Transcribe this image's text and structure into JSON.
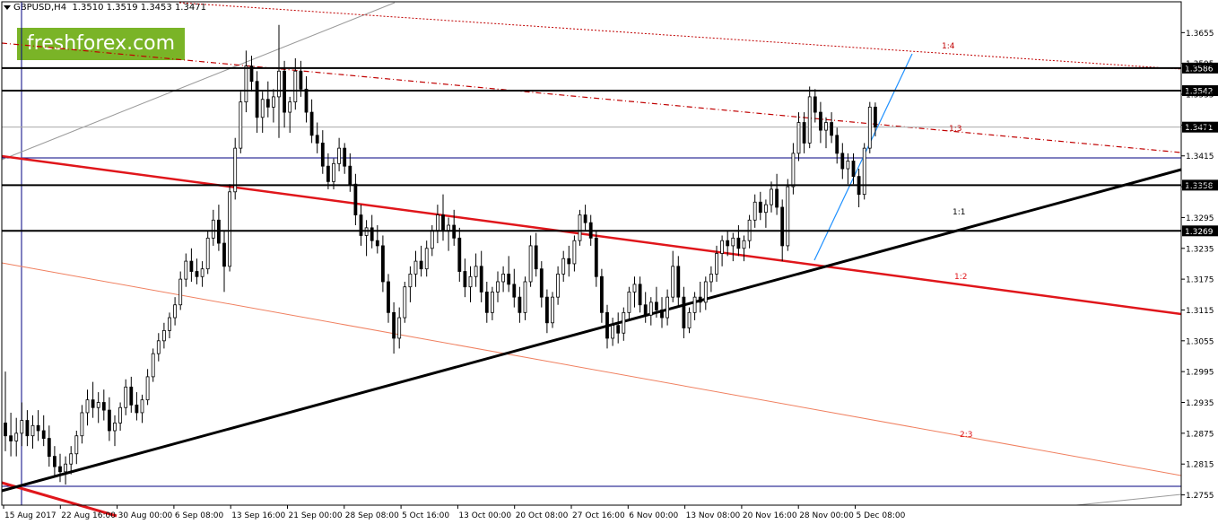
{
  "header": {
    "symbol": "GBPUSD,H4",
    "ohlc": "1.3510 1.3519 1.3453 1.3471"
  },
  "brand": {
    "text": "freshforex.com",
    "color": "#7ab427"
  },
  "colors": {
    "candles": "#000000",
    "support_resistance": "#000000",
    "trendline": "#000000",
    "channel_red": "#e0161b",
    "channel_light": "#f08060",
    "dotted_red": "#c00000",
    "blue_line": "#1e90ff",
    "price_line": "#a9a9a9",
    "vertical_marker": "#000080"
  },
  "chart_data": {
    "type": "candlestick",
    "title": "GBPUSD,H4",
    "ylim": [
      1.2735,
      1.3715
    ],
    "y_ticks": [
      "1.3655",
      "1.3595",
      "1.3535",
      "1.3475",
      "1.3415",
      "1.3355",
      "1.3295",
      "1.3235",
      "1.3175",
      "1.3115",
      "1.3055",
      "1.2995",
      "1.2935",
      "1.2875",
      "1.2815",
      "1.2755"
    ],
    "x_tick_labels": [
      "15 Aug 2017",
      "22 Aug 16:00",
      "30 Aug 00:00",
      "6 Sep 08:00",
      "13 Sep 16:00",
      "21 Sep 00:00",
      "28 Sep 08:00",
      "5 Oct 16:00",
      "13 Oct 00:00",
      "20 Oct 08:00",
      "27 Oct 16:00",
      "6 Nov 00:00",
      "13 Nov 08:00",
      "20 Nov 16:00",
      "28 Nov 00:00",
      "5 Dec 08:00"
    ],
    "horizontal_levels": [
      {
        "label": "1.3586",
        "value": 1.3586
      },
      {
        "label": "1.3542",
        "value": 1.3542
      },
      {
        "label": "1.3358",
        "value": 1.3358
      },
      {
        "label": "1.3269",
        "value": 1.3269
      }
    ],
    "current_price": {
      "label": "1.3471",
      "value": 1.3471
    },
    "line_labels": [
      "1:4",
      "1:3",
      "1:1",
      "1:2",
      "2:3"
    ],
    "grid": false,
    "candles": [
      {
        "o": 1.2895,
        "h": 1.2995,
        "l": 1.284,
        "c": 1.287
      },
      {
        "o": 1.287,
        "h": 1.2915,
        "l": 1.283,
        "c": 1.286
      },
      {
        "o": 1.286,
        "h": 1.2905,
        "l": 1.283,
        "c": 1.2875
      },
      {
        "o": 1.2875,
        "h": 1.2935,
        "l": 1.285,
        "c": 1.29
      },
      {
        "o": 1.29,
        "h": 1.292,
        "l": 1.285,
        "c": 1.287
      },
      {
        "o": 1.287,
        "h": 1.291,
        "l": 1.2845,
        "c": 1.289
      },
      {
        "o": 1.289,
        "h": 1.292,
        "l": 1.286,
        "c": 1.288
      },
      {
        "o": 1.288,
        "h": 1.291,
        "l": 1.285,
        "c": 1.2865
      },
      {
        "o": 1.2865,
        "h": 1.289,
        "l": 1.281,
        "c": 1.283
      },
      {
        "o": 1.283,
        "h": 1.285,
        "l": 1.279,
        "c": 1.281
      },
      {
        "o": 1.281,
        "h": 1.2835,
        "l": 1.278,
        "c": 1.28
      },
      {
        "o": 1.28,
        "h": 1.283,
        "l": 1.2775,
        "c": 1.2815
      },
      {
        "o": 1.2815,
        "h": 1.285,
        "l": 1.2795,
        "c": 1.2835
      },
      {
        "o": 1.2835,
        "h": 1.288,
        "l": 1.2815,
        "c": 1.287
      },
      {
        "o": 1.287,
        "h": 1.293,
        "l": 1.2855,
        "c": 1.2915
      },
      {
        "o": 1.2915,
        "h": 1.296,
        "l": 1.289,
        "c": 1.294
      },
      {
        "o": 1.294,
        "h": 1.2975,
        "l": 1.2905,
        "c": 1.2925
      },
      {
        "o": 1.2925,
        "h": 1.2955,
        "l": 1.2895,
        "c": 1.2935
      },
      {
        "o": 1.2935,
        "h": 1.296,
        "l": 1.29,
        "c": 1.292
      },
      {
        "o": 1.292,
        "h": 1.2945,
        "l": 1.286,
        "c": 1.288
      },
      {
        "o": 1.288,
        "h": 1.291,
        "l": 1.285,
        "c": 1.2895
      },
      {
        "o": 1.2895,
        "h": 1.2935,
        "l": 1.288,
        "c": 1.2925
      },
      {
        "o": 1.2925,
        "h": 1.298,
        "l": 1.291,
        "c": 1.2965
      },
      {
        "o": 1.2965,
        "h": 1.2985,
        "l": 1.2915,
        "c": 1.293
      },
      {
        "o": 1.293,
        "h": 1.2955,
        "l": 1.29,
        "c": 1.2915
      },
      {
        "o": 1.2915,
        "h": 1.295,
        "l": 1.2895,
        "c": 1.294
      },
      {
        "o": 1.294,
        "h": 1.3,
        "l": 1.293,
        "c": 1.2985
      },
      {
        "o": 1.2985,
        "h": 1.304,
        "l": 1.2975,
        "c": 1.303
      },
      {
        "o": 1.303,
        "h": 1.307,
        "l": 1.3015,
        "c": 1.3055
      },
      {
        "o": 1.3055,
        "h": 1.309,
        "l": 1.304,
        "c": 1.3075
      },
      {
        "o": 1.3075,
        "h": 1.311,
        "l": 1.306,
        "c": 1.31
      },
      {
        "o": 1.31,
        "h": 1.314,
        "l": 1.3085,
        "c": 1.3125
      },
      {
        "o": 1.3125,
        "h": 1.319,
        "l": 1.3115,
        "c": 1.3175
      },
      {
        "o": 1.3175,
        "h": 1.3225,
        "l": 1.316,
        "c": 1.321
      },
      {
        "o": 1.321,
        "h": 1.3235,
        "l": 1.317,
        "c": 1.319
      },
      {
        "o": 1.319,
        "h": 1.3215,
        "l": 1.3165,
        "c": 1.318
      },
      {
        "o": 1.318,
        "h": 1.321,
        "l": 1.316,
        "c": 1.3195
      },
      {
        "o": 1.3195,
        "h": 1.327,
        "l": 1.3185,
        "c": 1.3255
      },
      {
        "o": 1.3255,
        "h": 1.331,
        "l": 1.324,
        "c": 1.329
      },
      {
        "o": 1.329,
        "h": 1.332,
        "l": 1.323,
        "c": 1.3245
      },
      {
        "o": 1.3245,
        "h": 1.327,
        "l": 1.315,
        "c": 1.32
      },
      {
        "o": 1.32,
        "h": 1.336,
        "l": 1.319,
        "c": 1.3345
      },
      {
        "o": 1.3345,
        "h": 1.345,
        "l": 1.333,
        "c": 1.343
      },
      {
        "o": 1.343,
        "h": 1.354,
        "l": 1.342,
        "c": 1.352
      },
      {
        "o": 1.352,
        "h": 1.362,
        "l": 1.35,
        "c": 1.359
      },
      {
        "o": 1.359,
        "h": 1.361,
        "l": 1.354,
        "c": 1.356
      },
      {
        "o": 1.356,
        "h": 1.358,
        "l": 1.346,
        "c": 1.349
      },
      {
        "o": 1.349,
        "h": 1.354,
        "l": 1.346,
        "c": 1.3525
      },
      {
        "o": 1.3525,
        "h": 1.356,
        "l": 1.349,
        "c": 1.351
      },
      {
        "o": 1.351,
        "h": 1.3545,
        "l": 1.348,
        "c": 1.353
      },
      {
        "o": 1.353,
        "h": 1.367,
        "l": 1.345,
        "c": 1.358
      },
      {
        "o": 1.358,
        "h": 1.36,
        "l": 1.347,
        "c": 1.35
      },
      {
        "o": 1.35,
        "h": 1.353,
        "l": 1.346,
        "c": 1.352
      },
      {
        "o": 1.352,
        "h": 1.3605,
        "l": 1.3505,
        "c": 1.358
      },
      {
        "o": 1.358,
        "h": 1.36,
        "l": 1.353,
        "c": 1.3545
      },
      {
        "o": 1.3545,
        "h": 1.357,
        "l": 1.348,
        "c": 1.35
      },
      {
        "o": 1.35,
        "h": 1.3525,
        "l": 1.344,
        "c": 1.3455
      },
      {
        "o": 1.3455,
        "h": 1.348,
        "l": 1.342,
        "c": 1.344
      },
      {
        "o": 1.344,
        "h": 1.3465,
        "l": 1.338,
        "c": 1.3395
      },
      {
        "o": 1.3395,
        "h": 1.342,
        "l": 1.335,
        "c": 1.3365
      },
      {
        "o": 1.3365,
        "h": 1.341,
        "l": 1.335,
        "c": 1.34
      },
      {
        "o": 1.34,
        "h": 1.345,
        "l": 1.3385,
        "c": 1.343
      },
      {
        "o": 1.343,
        "h": 1.344,
        "l": 1.338,
        "c": 1.3395
      },
      {
        "o": 1.3395,
        "h": 1.342,
        "l": 1.3345,
        "c": 1.336
      },
      {
        "o": 1.336,
        "h": 1.338,
        "l": 1.328,
        "c": 1.33
      },
      {
        "o": 1.33,
        "h": 1.332,
        "l": 1.324,
        "c": 1.326
      },
      {
        "o": 1.326,
        "h": 1.329,
        "l": 1.322,
        "c": 1.3275
      },
      {
        "o": 1.3275,
        "h": 1.33,
        "l": 1.3235,
        "c": 1.325
      },
      {
        "o": 1.325,
        "h": 1.328,
        "l": 1.3225,
        "c": 1.324
      },
      {
        "o": 1.324,
        "h": 1.326,
        "l": 1.315,
        "c": 1.317
      },
      {
        "o": 1.317,
        "h": 1.3185,
        "l": 1.309,
        "c": 1.311
      },
      {
        "o": 1.311,
        "h": 1.313,
        "l": 1.303,
        "c": 1.306
      },
      {
        "o": 1.306,
        "h": 1.312,
        "l": 1.304,
        "c": 1.31
      },
      {
        "o": 1.31,
        "h": 1.317,
        "l": 1.309,
        "c": 1.316
      },
      {
        "o": 1.316,
        "h": 1.32,
        "l": 1.313,
        "c": 1.3185
      },
      {
        "o": 1.3185,
        "h": 1.323,
        "l": 1.316,
        "c": 1.321
      },
      {
        "o": 1.321,
        "h": 1.324,
        "l": 1.318,
        "c": 1.3195
      },
      {
        "o": 1.3195,
        "h": 1.325,
        "l": 1.318,
        "c": 1.3235
      },
      {
        "o": 1.3235,
        "h": 1.328,
        "l": 1.322,
        "c": 1.327
      },
      {
        "o": 1.327,
        "h": 1.332,
        "l": 1.3245,
        "c": 1.33
      },
      {
        "o": 1.33,
        "h": 1.334,
        "l": 1.325,
        "c": 1.327
      },
      {
        "o": 1.327,
        "h": 1.3295,
        "l": 1.323,
        "c": 1.328
      },
      {
        "o": 1.328,
        "h": 1.331,
        "l": 1.324,
        "c": 1.3255
      },
      {
        "o": 1.3255,
        "h": 1.3275,
        "l": 1.317,
        "c": 1.319
      },
      {
        "o": 1.319,
        "h": 1.3215,
        "l": 1.314,
        "c": 1.316
      },
      {
        "o": 1.316,
        "h": 1.32,
        "l": 1.313,
        "c": 1.318
      },
      {
        "o": 1.318,
        "h": 1.3225,
        "l": 1.316,
        "c": 1.32
      },
      {
        "o": 1.32,
        "h": 1.323,
        "l": 1.313,
        "c": 1.315
      },
      {
        "o": 1.315,
        "h": 1.317,
        "l": 1.309,
        "c": 1.311
      },
      {
        "o": 1.311,
        "h": 1.316,
        "l": 1.3095,
        "c": 1.315
      },
      {
        "o": 1.315,
        "h": 1.319,
        "l": 1.313,
        "c": 1.317
      },
      {
        "o": 1.317,
        "h": 1.32,
        "l": 1.315,
        "c": 1.3185
      },
      {
        "o": 1.3185,
        "h": 1.322,
        "l": 1.315,
        "c": 1.3165
      },
      {
        "o": 1.3165,
        "h": 1.3195,
        "l": 1.312,
        "c": 1.314
      },
      {
        "o": 1.314,
        "h": 1.316,
        "l": 1.309,
        "c": 1.311
      },
      {
        "o": 1.311,
        "h": 1.318,
        "l": 1.3095,
        "c": 1.317
      },
      {
        "o": 1.317,
        "h": 1.326,
        "l": 1.316,
        "c": 1.324
      },
      {
        "o": 1.324,
        "h": 1.3265,
        "l": 1.318,
        "c": 1.3195
      },
      {
        "o": 1.3195,
        "h": 1.321,
        "l": 1.312,
        "c": 1.314
      },
      {
        "o": 1.314,
        "h": 1.3155,
        "l": 1.307,
        "c": 1.309
      },
      {
        "o": 1.309,
        "h": 1.315,
        "l": 1.308,
        "c": 1.314
      },
      {
        "o": 1.314,
        "h": 1.32,
        "l": 1.3125,
        "c": 1.3185
      },
      {
        "o": 1.3185,
        "h": 1.323,
        "l": 1.317,
        "c": 1.3215
      },
      {
        "o": 1.3215,
        "h": 1.324,
        "l": 1.318,
        "c": 1.3205
      },
      {
        "o": 1.3205,
        "h": 1.326,
        "l": 1.319,
        "c": 1.325
      },
      {
        "o": 1.325,
        "h": 1.331,
        "l": 1.324,
        "c": 1.33
      },
      {
        "o": 1.33,
        "h": 1.332,
        "l": 1.327,
        "c": 1.3285
      },
      {
        "o": 1.3285,
        "h": 1.33,
        "l": 1.324,
        "c": 1.3255
      },
      {
        "o": 1.3255,
        "h": 1.327,
        "l": 1.316,
        "c": 1.318
      },
      {
        "o": 1.318,
        "h": 1.3195,
        "l": 1.309,
        "c": 1.311
      },
      {
        "o": 1.311,
        "h": 1.3125,
        "l": 1.304,
        "c": 1.306
      },
      {
        "o": 1.306,
        "h": 1.31,
        "l": 1.3045,
        "c": 1.3085
      },
      {
        "o": 1.3085,
        "h": 1.311,
        "l": 1.305,
        "c": 1.307
      },
      {
        "o": 1.307,
        "h": 1.312,
        "l": 1.3055,
        "c": 1.311
      },
      {
        "o": 1.311,
        "h": 1.316,
        "l": 1.3095,
        "c": 1.315
      },
      {
        "o": 1.315,
        "h": 1.318,
        "l": 1.312,
        "c": 1.3165
      },
      {
        "o": 1.3165,
        "h": 1.318,
        "l": 1.311,
        "c": 1.3125
      },
      {
        "o": 1.3125,
        "h": 1.315,
        "l": 1.309,
        "c": 1.3105
      },
      {
        "o": 1.3105,
        "h": 1.314,
        "l": 1.3085,
        "c": 1.313
      },
      {
        "o": 1.313,
        "h": 1.316,
        "l": 1.31,
        "c": 1.3115
      },
      {
        "o": 1.3115,
        "h": 1.314,
        "l": 1.308,
        "c": 1.31
      },
      {
        "o": 1.31,
        "h": 1.3155,
        "l": 1.3085,
        "c": 1.314
      },
      {
        "o": 1.314,
        "h": 1.323,
        "l": 1.313,
        "c": 1.32
      },
      {
        "o": 1.32,
        "h": 1.322,
        "l": 1.312,
        "c": 1.314
      },
      {
        "o": 1.314,
        "h": 1.316,
        "l": 1.306,
        "c": 1.308
      },
      {
        "o": 1.308,
        "h": 1.312,
        "l": 1.307,
        "c": 1.311
      },
      {
        "o": 1.311,
        "h": 1.315,
        "l": 1.3095,
        "c": 1.314
      },
      {
        "o": 1.314,
        "h": 1.317,
        "l": 1.311,
        "c": 1.313
      },
      {
        "o": 1.313,
        "h": 1.318,
        "l": 1.3115,
        "c": 1.317
      },
      {
        "o": 1.317,
        "h": 1.32,
        "l": 1.315,
        "c": 1.3185
      },
      {
        "o": 1.3185,
        "h": 1.324,
        "l": 1.317,
        "c": 1.3225
      },
      {
        "o": 1.3225,
        "h": 1.326,
        "l": 1.32,
        "c": 1.325
      },
      {
        "o": 1.325,
        "h": 1.327,
        "l": 1.322,
        "c": 1.324
      },
      {
        "o": 1.324,
        "h": 1.3265,
        "l": 1.321,
        "c": 1.3255
      },
      {
        "o": 1.3255,
        "h": 1.328,
        "l": 1.322,
        "c": 1.3235
      },
      {
        "o": 1.3235,
        "h": 1.326,
        "l": 1.321,
        "c": 1.325
      },
      {
        "o": 1.325,
        "h": 1.33,
        "l": 1.3235,
        "c": 1.329
      },
      {
        "o": 1.329,
        "h": 1.334,
        "l": 1.3275,
        "c": 1.3325
      },
      {
        "o": 1.3325,
        "h": 1.3345,
        "l": 1.329,
        "c": 1.3305
      },
      {
        "o": 1.3305,
        "h": 1.333,
        "l": 1.3275,
        "c": 1.332
      },
      {
        "o": 1.332,
        "h": 1.3365,
        "l": 1.3305,
        "c": 1.335
      },
      {
        "o": 1.335,
        "h": 1.338,
        "l": 1.33,
        "c": 1.3315
      },
      {
        "o": 1.3315,
        "h": 1.333,
        "l": 1.321,
        "c": 1.324
      },
      {
        "o": 1.324,
        "h": 1.337,
        "l": 1.323,
        "c": 1.3355
      },
      {
        "o": 1.3355,
        "h": 1.344,
        "l": 1.334,
        "c": 1.342
      },
      {
        "o": 1.342,
        "h": 1.35,
        "l": 1.3405,
        "c": 1.348
      },
      {
        "o": 1.348,
        "h": 1.35,
        "l": 1.342,
        "c": 1.344
      },
      {
        "o": 1.344,
        "h": 1.355,
        "l": 1.343,
        "c": 1.353
      },
      {
        "o": 1.353,
        "h": 1.3545,
        "l": 1.348,
        "c": 1.35
      },
      {
        "o": 1.35,
        "h": 1.352,
        "l": 1.344,
        "c": 1.3465
      },
      {
        "o": 1.3465,
        "h": 1.349,
        "l": 1.343,
        "c": 1.348
      },
      {
        "o": 1.348,
        "h": 1.35,
        "l": 1.344,
        "c": 1.3455
      },
      {
        "o": 1.3455,
        "h": 1.347,
        "l": 1.34,
        "c": 1.342
      },
      {
        "o": 1.342,
        "h": 1.344,
        "l": 1.337,
        "c": 1.339
      },
      {
        "o": 1.339,
        "h": 1.342,
        "l": 1.336,
        "c": 1.3405
      },
      {
        "o": 1.3405,
        "h": 1.342,
        "l": 1.336,
        "c": 1.3375
      },
      {
        "o": 1.3375,
        "h": 1.339,
        "l": 1.3315,
        "c": 1.334
      },
      {
        "o": 1.334,
        "h": 1.344,
        "l": 1.333,
        "c": 1.343
      },
      {
        "o": 1.343,
        "h": 1.352,
        "l": 1.342,
        "c": 1.351
      },
      {
        "o": 1.351,
        "h": 1.3519,
        "l": 1.3453,
        "c": 1.3471
      }
    ]
  }
}
